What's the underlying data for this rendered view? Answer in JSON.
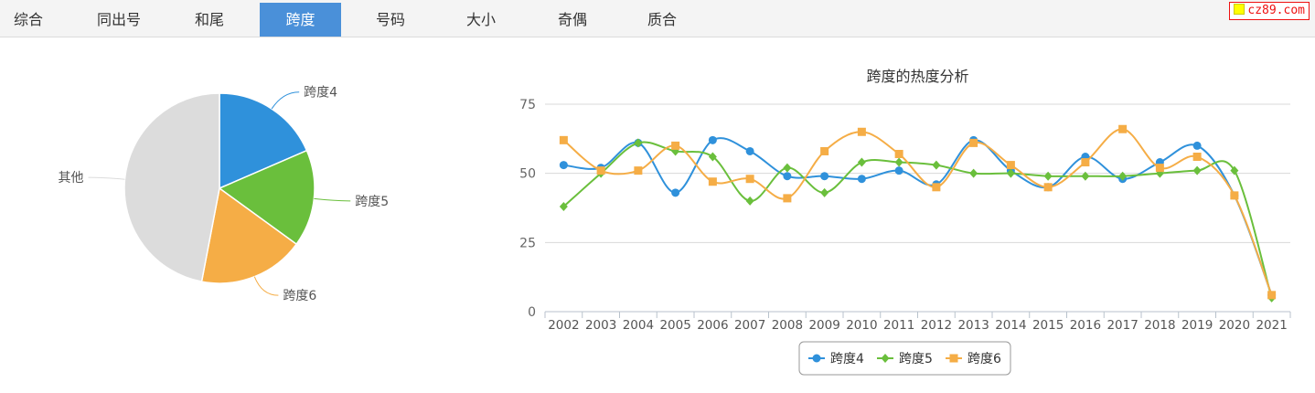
{
  "tabs": [
    {
      "label": "综合",
      "active": false
    },
    {
      "label": "同出号",
      "active": false
    },
    {
      "label": "和尾",
      "active": false
    },
    {
      "label": "跨度",
      "active": true
    },
    {
      "label": "号码",
      "active": false
    },
    {
      "label": "大小",
      "active": false
    },
    {
      "label": "奇偶",
      "active": false
    },
    {
      "label": "质合",
      "active": false
    }
  ],
  "brand": {
    "text": "cz89.com",
    "color": "#ee1111"
  },
  "chart_data": [
    {
      "type": "pie",
      "slices": [
        {
          "label": "跨度4",
          "value": 18.5,
          "color": "#2f91db"
        },
        {
          "label": "跨度5",
          "value": 16.5,
          "color": "#6abf3c"
        },
        {
          "label": "跨度6",
          "value": 18.0,
          "color": "#f5ad46"
        },
        {
          "label": "其他",
          "value": 47.0,
          "color": "#dcdcdc"
        }
      ]
    },
    {
      "type": "line",
      "title": "跨度的热度分析",
      "categories": [
        "2002",
        "2003",
        "2004",
        "2005",
        "2006",
        "2007",
        "2008",
        "2009",
        "2010",
        "2011",
        "2012",
        "2013",
        "2014",
        "2015",
        "2016",
        "2017",
        "2018",
        "2019",
        "2020",
        "2021"
      ],
      "ylim": [
        0,
        75
      ],
      "yticks": [
        "0",
        "25",
        "50",
        "75"
      ],
      "grid": true,
      "legend_position": "bottom",
      "series": [
        {
          "name": "跨度4",
          "color": "#2f91db",
          "marker": "circle",
          "values": [
            53,
            52,
            61,
            43,
            62,
            58,
            49,
            49,
            48,
            51,
            46,
            62,
            51,
            45,
            56,
            48,
            54,
            60,
            42,
            6
          ]
        },
        {
          "name": "跨度5",
          "color": "#6abf3c",
          "marker": "diamond",
          "values": [
            38,
            50,
            61,
            58,
            56,
            40,
            52,
            43,
            54,
            54,
            53,
            50,
            50,
            49,
            49,
            49,
            50,
            51,
            51,
            5
          ]
        },
        {
          "name": "跨度6",
          "color": "#f5ad46",
          "marker": "square",
          "values": [
            62,
            51,
            51,
            60,
            47,
            48,
            41,
            58,
            65,
            57,
            45,
            61,
            53,
            45,
            54,
            66,
            52,
            56,
            42,
            6
          ]
        }
      ]
    }
  ]
}
